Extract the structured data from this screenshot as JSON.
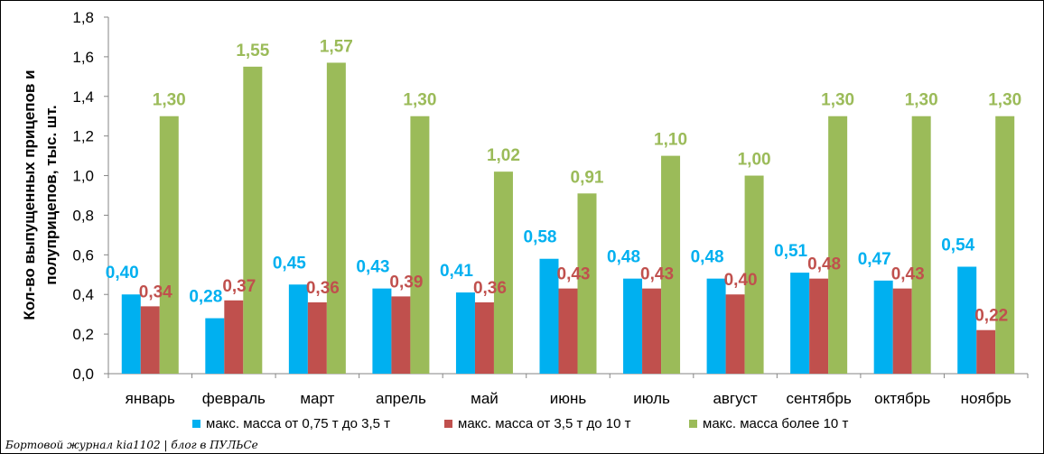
{
  "chart_data": {
    "type": "bar",
    "categories": [
      "январь",
      "февраль",
      "март",
      "апрель",
      "май",
      "июнь",
      "июль",
      "август",
      "сентябрь",
      "октябрь",
      "ноябрь"
    ],
    "series": [
      {
        "name": "макс. масса от 0,75 т до 3,5 т",
        "color": "#00b0f0",
        "values": [
          0.4,
          0.28,
          0.45,
          0.43,
          0.41,
          0.58,
          0.48,
          0.48,
          0.51,
          0.47,
          0.54
        ],
        "labels": [
          "0,40",
          "0,28",
          "0,45",
          "0,43",
          "0,41",
          "0,58",
          "0,48",
          "0,48",
          "0,51",
          "0,47",
          "0,54"
        ]
      },
      {
        "name": "макс. масса от 3,5 т до 10 т",
        "color": "#c0504d",
        "values": [
          0.34,
          0.37,
          0.36,
          0.39,
          0.36,
          0.43,
          0.43,
          0.4,
          0.48,
          0.43,
          0.22
        ],
        "labels": [
          "0,34",
          "0,37",
          "0,36",
          "0,39",
          "0,36",
          "0,43",
          "0,43",
          "0,40",
          "0,48",
          "0,43",
          "0,22"
        ]
      },
      {
        "name": "макс. масса более 10 т",
        "color": "#9bbb59",
        "values": [
          1.3,
          1.55,
          1.57,
          1.3,
          1.02,
          0.91,
          1.1,
          1.0,
          1.3,
          1.3,
          1.3
        ],
        "labels": [
          "1,30",
          "1,55",
          "1,57",
          "1,30",
          "1,02",
          "0,91",
          "1,10",
          "1,00",
          "1,30",
          "1,30",
          "1,30"
        ]
      }
    ],
    "ylabel": [
      "Кол-во выпущенных прицепов и",
      "полуприцепов, тыс. шт."
    ],
    "ylim": [
      0,
      1.8
    ],
    "yticks": [
      "0,0",
      "0,2",
      "0,4",
      "0,6",
      "0,8",
      "1,0",
      "1,2",
      "1,4",
      "1,6",
      "1,8"
    ],
    "grid": false,
    "legend_position": "bottom"
  },
  "watermark": "Бортовой журнал kia1102 | блог в ПУЛЬСе"
}
